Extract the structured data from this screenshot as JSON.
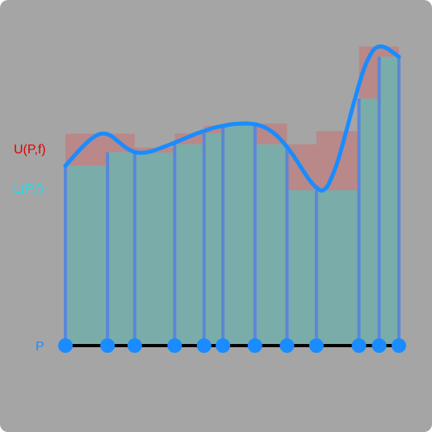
{
  "labels": {
    "upper": "U(P,f)",
    "lower": "L(P,f)",
    "partition": "P"
  },
  "colors": {
    "background": "#a5a5a5",
    "upper_fill": "#b98888",
    "lower_fill": "#7aacaa",
    "curve": "#1a8cff",
    "divider": "#5b87d6",
    "points": "#1a8cff",
    "axis": "#000000",
    "upper_label": "#e00000",
    "lower_label": "#22ddee",
    "partition_label": "#1a8cff"
  },
  "diagram": {
    "partition_points": [
      0,
      0.096,
      0.158,
      0.249,
      0.316,
      0.359,
      0.432,
      0.505,
      0.572,
      0.669,
      0.715,
      0.76
    ],
    "curve": [
      [
        0.0,
        0.495
      ],
      [
        0.02,
        0.522
      ],
      [
        0.04,
        0.548
      ],
      [
        0.06,
        0.57
      ],
      [
        0.08,
        0.583
      ],
      [
        0.1,
        0.58
      ],
      [
        0.12,
        0.562
      ],
      [
        0.14,
        0.543
      ],
      [
        0.16,
        0.532
      ],
      [
        0.18,
        0.531
      ],
      [
        0.2,
        0.536
      ],
      [
        0.22,
        0.545
      ],
      [
        0.24,
        0.554
      ],
      [
        0.26,
        0.564
      ],
      [
        0.28,
        0.574
      ],
      [
        0.3,
        0.584
      ],
      [
        0.32,
        0.592
      ],
      [
        0.34,
        0.6
      ],
      [
        0.36,
        0.605
      ],
      [
        0.38,
        0.609
      ],
      [
        0.4,
        0.611
      ],
      [
        0.42,
        0.611
      ],
      [
        0.44,
        0.607
      ],
      [
        0.46,
        0.597
      ],
      [
        0.48,
        0.58
      ],
      [
        0.5,
        0.554
      ],
      [
        0.52,
        0.522
      ],
      [
        0.54,
        0.485
      ],
      [
        0.56,
        0.45
      ],
      [
        0.58,
        0.428
      ],
      [
        0.59,
        0.43
      ],
      [
        0.6,
        0.445
      ],
      [
        0.62,
        0.505
      ],
      [
        0.64,
        0.59
      ],
      [
        0.66,
        0.68
      ],
      [
        0.68,
        0.76
      ],
      [
        0.7,
        0.81
      ],
      [
        0.715,
        0.823
      ],
      [
        0.73,
        0.82
      ],
      [
        0.745,
        0.808
      ],
      [
        0.76,
        0.795
      ]
    ],
    "lower_heights": [
      0.495,
      0.532,
      0.531,
      0.554,
      0.584,
      0.605,
      0.554,
      0.428,
      0.428,
      0.68,
      0.795
    ],
    "upper_heights": [
      0.583,
      0.583,
      0.545,
      0.584,
      0.605,
      0.611,
      0.611,
      0.554,
      0.59,
      0.823,
      0.823
    ]
  }
}
